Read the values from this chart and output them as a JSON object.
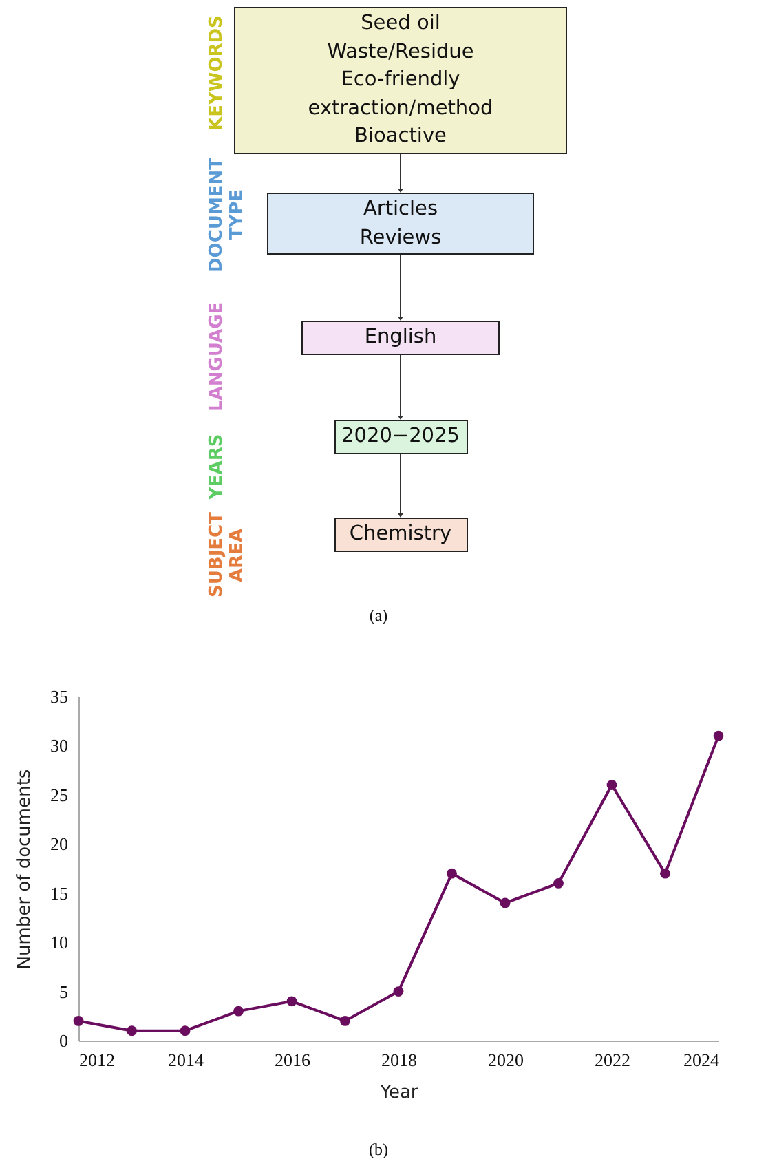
{
  "chart_data": [
    {
      "type": "other",
      "categories": [
        "KEYWORDS",
        "DOCUMENT TYPE",
        "LANGUAGE",
        "YEARS",
        "SUBJECT AREA"
      ],
      "colors": [
        "#c9c41e",
        "#5b9bd5",
        "#d27fd0",
        "#5dcc63",
        "#e47c3e"
      ],
      "annotations": [
        "Seed oil\nWaste/Residue\nEco-friendly\nextraction/method\nBioactive",
        "Articles\nReviews",
        "English",
        "2020−2025",
        "Chemistry",
        "(a)"
      ]
    },
    {
      "type": "line",
      "x": [
        2012,
        2013,
        2014,
        2015,
        2016,
        2017,
        2018,
        2019,
        2020,
        2021,
        2022,
        2023,
        2024
      ],
      "series": [
        {
          "color": "#6a0d5f",
          "values": [
            2,
            1,
            1,
            3,
            4,
            2,
            5,
            17,
            14,
            16,
            26,
            17,
            31
          ]
        }
      ],
      "xlabel": "Year",
      "ylabel": "Number of documents",
      "xlim": [
        2012,
        2024
      ],
      "xticks": [
        2012,
        2014,
        2016,
        2018,
        2020,
        2022,
        2024
      ],
      "ylim": [
        0,
        35
      ],
      "yticks": [
        0,
        5,
        10,
        15,
        20,
        25,
        30,
        35
      ],
      "grid": false,
      "marker": "circle",
      "annotations": [
        "(b)"
      ]
    }
  ]
}
